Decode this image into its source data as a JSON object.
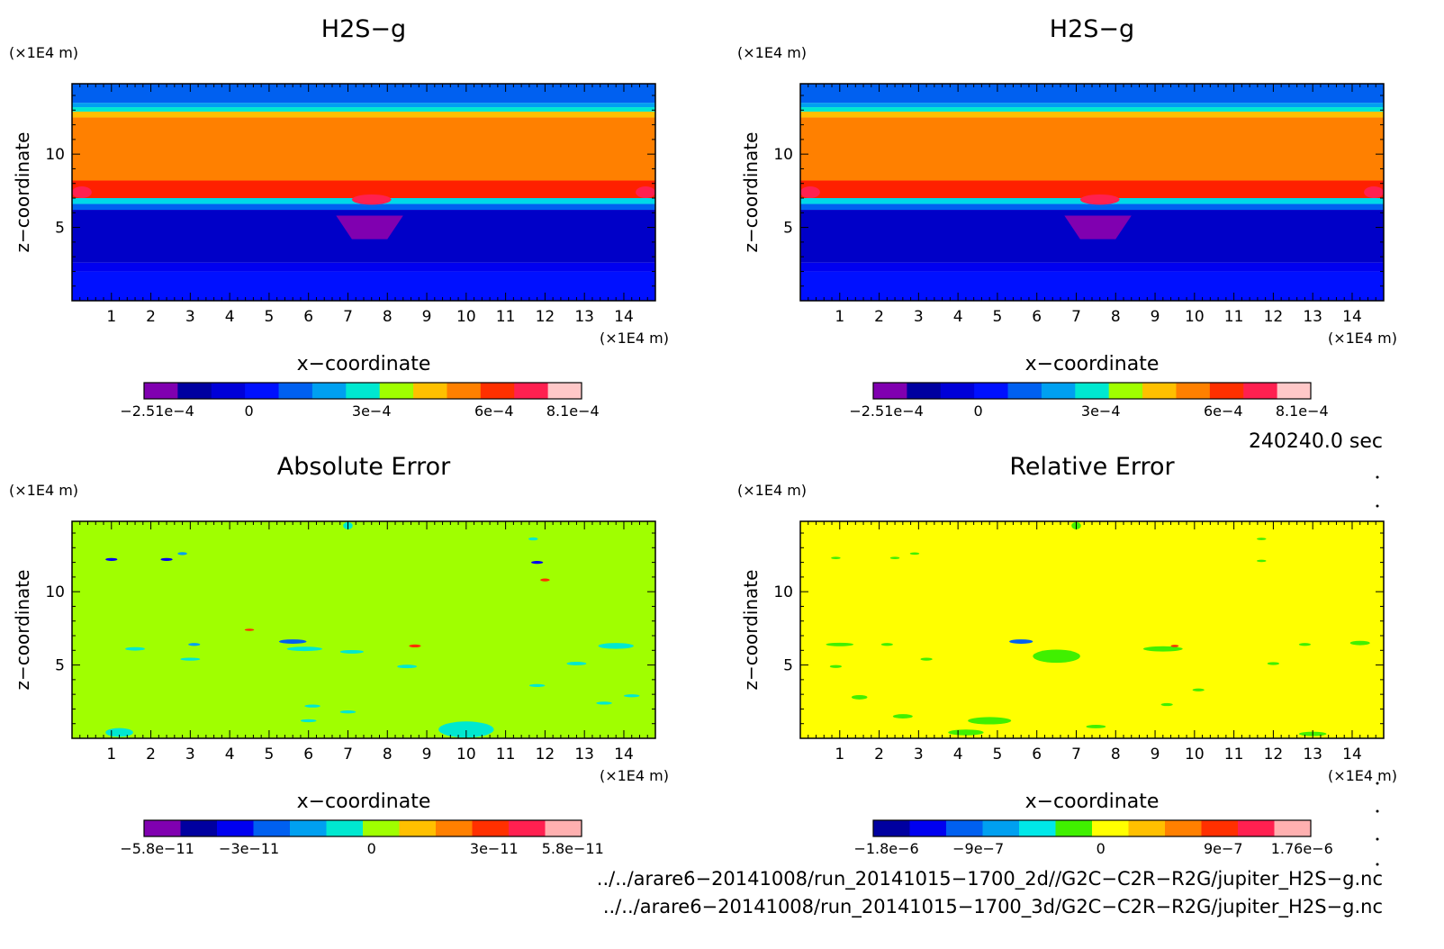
{
  "chart_data": [
    {
      "type": "heatmap",
      "title": "H2S−g",
      "xlabel": "x−coordinate",
      "ylabel": "z−coordinate",
      "x_unit": "(×1E4 m)",
      "y_unit": "(×1E4 m)",
      "xlim": [
        0,
        14.8
      ],
      "ylim": [
        0,
        14.8
      ],
      "xticks": [
        1,
        2,
        3,
        4,
        5,
        6,
        7,
        8,
        9,
        10,
        11,
        12,
        13,
        14
      ],
      "yticks": [
        5,
        10
      ],
      "colorbar": {
        "colors": [
          "#8000b0",
          "#0000a0",
          "#0000d8",
          "#0010ff",
          "#0060f0",
          "#00a0f0",
          "#00e8d0",
          "#a0ff00",
          "#ffc000",
          "#ff8000",
          "#ff3000",
          "#ff2050",
          "#ffc8c8"
        ],
        "tick_labels": [
          "−2.51e−4",
          "0",
          "3e−4",
          "6e−4",
          "8.1e−4"
        ]
      },
      "bands": [
        {
          "z_from": 0,
          "z_to": 2.0,
          "color": "#0010ff"
        },
        {
          "z_from": 2.0,
          "z_to": 2.6,
          "color": "#0000f0"
        },
        {
          "z_from": 2.6,
          "z_to": 6.2,
          "color": "#0000c8"
        },
        {
          "z_from": 6.2,
          "z_to": 6.6,
          "color": "#0060f0"
        },
        {
          "z_from": 6.6,
          "z_to": 7.0,
          "color": "#00d8e8"
        },
        {
          "z_from": 7.0,
          "z_to": 8.2,
          "color": "#ff2000"
        },
        {
          "z_from": 8.2,
          "z_to": 12.5,
          "color": "#ff8000"
        },
        {
          "z_from": 12.5,
          "z_to": 12.9,
          "color": "#ffc000"
        },
        {
          "z_from": 12.9,
          "z_to": 13.2,
          "color": "#00e8d0"
        },
        {
          "z_from": 13.2,
          "z_to": 13.5,
          "color": "#00a0f0"
        },
        {
          "z_from": 13.5,
          "z_to": 14.8,
          "color": "#0060f0"
        }
      ],
      "features": [
        {
          "shape": "trapezoid",
          "x": [
            6.7,
            8.4,
            8.0,
            7.1
          ],
          "z": [
            5.8,
            5.8,
            4.2,
            4.2
          ],
          "color": "#8000b0"
        },
        {
          "shape": "ellipse",
          "cx": 7.6,
          "cz": 6.9,
          "rx": 0.5,
          "rz": 0.35,
          "color": "#ff2050"
        },
        {
          "shape": "ellipse",
          "cx": 0.25,
          "cz": 7.4,
          "rx": 0.25,
          "rz": 0.4,
          "color": "#ff2050"
        },
        {
          "shape": "ellipse",
          "cx": 14.55,
          "cz": 7.4,
          "rx": 0.25,
          "rz": 0.4,
          "color": "#ff2050"
        }
      ]
    },
    {
      "type": "heatmap",
      "title": "H2S−g",
      "xlabel": "x−coordinate",
      "ylabel": "z−coordinate",
      "x_unit": "(×1E4 m)",
      "y_unit": "(×1E4 m)",
      "xlim": [
        0,
        14.8
      ],
      "ylim": [
        0,
        14.8
      ],
      "xticks": [
        1,
        2,
        3,
        4,
        5,
        6,
        7,
        8,
        9,
        10,
        11,
        12,
        13,
        14
      ],
      "yticks": [
        5,
        10
      ],
      "colorbar": {
        "colors": [
          "#8000b0",
          "#0000a0",
          "#0000d8",
          "#0010ff",
          "#0060f0",
          "#00a0f0",
          "#00e8d0",
          "#a0ff00",
          "#ffc000",
          "#ff8000",
          "#ff3000",
          "#ff2050",
          "#ffc8c8"
        ],
        "tick_labels": [
          "−2.51e−4",
          "0",
          "3e−4",
          "6e−4",
          "8.1e−4"
        ]
      },
      "bands": [
        {
          "z_from": 0,
          "z_to": 2.0,
          "color": "#0010ff"
        },
        {
          "z_from": 2.0,
          "z_to": 2.6,
          "color": "#0000f0"
        },
        {
          "z_from": 2.6,
          "z_to": 6.2,
          "color": "#0000c8"
        },
        {
          "z_from": 6.2,
          "z_to": 6.6,
          "color": "#0060f0"
        },
        {
          "z_from": 6.6,
          "z_to": 7.0,
          "color": "#00d8e8"
        },
        {
          "z_from": 7.0,
          "z_to": 8.2,
          "color": "#ff2000"
        },
        {
          "z_from": 8.2,
          "z_to": 12.5,
          "color": "#ff8000"
        },
        {
          "z_from": 12.5,
          "z_to": 12.9,
          "color": "#ffc000"
        },
        {
          "z_from": 12.9,
          "z_to": 13.2,
          "color": "#00e8d0"
        },
        {
          "z_from": 13.2,
          "z_to": 13.5,
          "color": "#00a0f0"
        },
        {
          "z_from": 13.5,
          "z_to": 14.8,
          "color": "#0060f0"
        }
      ],
      "features": [
        {
          "shape": "trapezoid",
          "x": [
            6.7,
            8.4,
            8.0,
            7.1
          ],
          "z": [
            5.8,
            5.8,
            4.2,
            4.2
          ],
          "color": "#8000b0"
        },
        {
          "shape": "ellipse",
          "cx": 7.6,
          "cz": 6.9,
          "rx": 0.5,
          "rz": 0.35,
          "color": "#ff2050"
        },
        {
          "shape": "ellipse",
          "cx": 0.25,
          "cz": 7.4,
          "rx": 0.25,
          "rz": 0.4,
          "color": "#ff2050"
        },
        {
          "shape": "ellipse",
          "cx": 14.55,
          "cz": 7.4,
          "rx": 0.25,
          "rz": 0.4,
          "color": "#ff2050"
        }
      ]
    },
    {
      "type": "heatmap",
      "title": "Absolute Error",
      "xlabel": "x−coordinate",
      "ylabel": "z−coordinate",
      "x_unit": "(×1E4 m)",
      "y_unit": "(×1E4 m)",
      "xlim": [
        0,
        14.8
      ],
      "ylim": [
        0,
        14.8
      ],
      "xticks": [
        1,
        2,
        3,
        4,
        5,
        6,
        7,
        8,
        9,
        10,
        11,
        12,
        13,
        14
      ],
      "yticks": [
        5,
        10
      ],
      "colorbar": {
        "colors": [
          "#8000b0",
          "#0000a0",
          "#0000f0",
          "#0060f0",
          "#00a0f0",
          "#00e8d0",
          "#a0ff00",
          "#ffc000",
          "#ff8000",
          "#ff3000",
          "#ff2050",
          "#ffb0b0"
        ],
        "tick_labels": [
          "−5.8e−11",
          "−3e−11",
          "0",
          "3e−11",
          "5.8e−11"
        ]
      },
      "bands": [
        {
          "z_from": 0,
          "z_to": 14.8,
          "color": "#a0ff00"
        }
      ],
      "features": [
        {
          "shape": "ellipse",
          "cx": 1.0,
          "cz": 12.2,
          "rx": 0.15,
          "rz": 0.1,
          "color": "#0000f0"
        },
        {
          "shape": "ellipse",
          "cx": 2.4,
          "cz": 12.2,
          "rx": 0.15,
          "rz": 0.1,
          "color": "#0000f0"
        },
        {
          "shape": "ellipse",
          "cx": 11.8,
          "cz": 12.0,
          "rx": 0.15,
          "rz": 0.1,
          "color": "#0000f0"
        },
        {
          "shape": "ellipse",
          "cx": 2.8,
          "cz": 12.6,
          "rx": 0.12,
          "rz": 0.1,
          "color": "#00a0f0"
        },
        {
          "shape": "ellipse",
          "cx": 11.7,
          "cz": 13.6,
          "rx": 0.12,
          "rz": 0.1,
          "color": "#00e8d0"
        },
        {
          "shape": "ellipse",
          "cx": 7.0,
          "cz": 14.5,
          "rx": 0.12,
          "rz": 0.25,
          "color": "#00e8d0"
        },
        {
          "shape": "ellipse",
          "cx": 12.0,
          "cz": 10.8,
          "rx": 0.12,
          "rz": 0.1,
          "color": "#ff3000"
        },
        {
          "shape": "ellipse",
          "cx": 4.5,
          "cz": 7.4,
          "rx": 0.12,
          "rz": 0.08,
          "color": "#ff3000"
        },
        {
          "shape": "ellipse",
          "cx": 5.6,
          "cz": 6.6,
          "rx": 0.35,
          "rz": 0.15,
          "color": "#0060f0"
        },
        {
          "shape": "ellipse",
          "cx": 1.6,
          "cz": 6.1,
          "rx": 0.25,
          "rz": 0.12,
          "color": "#00e8d0"
        },
        {
          "shape": "ellipse",
          "cx": 3.1,
          "cz": 6.4,
          "rx": 0.15,
          "rz": 0.1,
          "color": "#00a0f0"
        },
        {
          "shape": "ellipse",
          "cx": 5.9,
          "cz": 6.1,
          "rx": 0.45,
          "rz": 0.15,
          "color": "#00e8d0"
        },
        {
          "shape": "ellipse",
          "cx": 7.1,
          "cz": 5.9,
          "rx": 0.3,
          "rz": 0.12,
          "color": "#00e8d0"
        },
        {
          "shape": "ellipse",
          "cx": 8.7,
          "cz": 6.3,
          "rx": 0.15,
          "rz": 0.1,
          "color": "#ff3000"
        },
        {
          "shape": "ellipse",
          "cx": 13.8,
          "cz": 6.3,
          "rx": 0.45,
          "rz": 0.2,
          "color": "#00e8d0"
        },
        {
          "shape": "ellipse",
          "cx": 3.0,
          "cz": 5.4,
          "rx": 0.25,
          "rz": 0.1,
          "color": "#00e8d0"
        },
        {
          "shape": "ellipse",
          "cx": 8.5,
          "cz": 4.9,
          "rx": 0.25,
          "rz": 0.12,
          "color": "#00e8d0"
        },
        {
          "shape": "ellipse",
          "cx": 12.8,
          "cz": 5.1,
          "rx": 0.25,
          "rz": 0.12,
          "color": "#00e8d0"
        },
        {
          "shape": "ellipse",
          "cx": 11.8,
          "cz": 3.6,
          "rx": 0.2,
          "rz": 0.1,
          "color": "#00e8d0"
        },
        {
          "shape": "ellipse",
          "cx": 14.2,
          "cz": 2.9,
          "rx": 0.2,
          "rz": 0.1,
          "color": "#00e8d0"
        },
        {
          "shape": "ellipse",
          "cx": 13.5,
          "cz": 2.4,
          "rx": 0.2,
          "rz": 0.1,
          "color": "#00e8d0"
        },
        {
          "shape": "ellipse",
          "cx": 6.1,
          "cz": 2.2,
          "rx": 0.2,
          "rz": 0.1,
          "color": "#00e8d0"
        },
        {
          "shape": "ellipse",
          "cx": 7.0,
          "cz": 1.8,
          "rx": 0.2,
          "rz": 0.1,
          "color": "#00e8d0"
        },
        {
          "shape": "ellipse",
          "cx": 10.0,
          "cz": 0.6,
          "rx": 0.7,
          "rz": 0.55,
          "color": "#00e8d0"
        },
        {
          "shape": "ellipse",
          "cx": 1.2,
          "cz": 0.4,
          "rx": 0.35,
          "rz": 0.3,
          "color": "#00e8d0"
        },
        {
          "shape": "ellipse",
          "cx": 6.0,
          "cz": 1.2,
          "rx": 0.2,
          "rz": 0.1,
          "color": "#00e8d0"
        }
      ]
    },
    {
      "type": "heatmap",
      "title": "Relative Error",
      "xlabel": "x−coordinate",
      "ylabel": "z−coordinate",
      "x_unit": "(×1E4 m)",
      "y_unit": "(×1E4 m)",
      "xlim": [
        0,
        14.8
      ],
      "ylim": [
        0,
        14.8
      ],
      "xticks": [
        1,
        2,
        3,
        4,
        5,
        6,
        7,
        8,
        9,
        10,
        11,
        12,
        13,
        14
      ],
      "yticks": [
        5,
        10
      ],
      "colorbar": {
        "colors": [
          "#0000a0",
          "#0000f0",
          "#0060f0",
          "#00a0f0",
          "#00e8e8",
          "#40f000",
          "#ffff00",
          "#ffc000",
          "#ff8000",
          "#ff3000",
          "#ff2050",
          "#ffb0b0"
        ],
        "tick_labels": [
          "−1.8e−6",
          "−9e−7",
          "0",
          "9e−7",
          "1.76e−6"
        ]
      },
      "bands": [
        {
          "z_from": 0,
          "z_to": 14.8,
          "color": "#ffff00"
        }
      ],
      "features": [
        {
          "shape": "ellipse",
          "cx": 7.0,
          "cz": 14.5,
          "rx": 0.12,
          "rz": 0.25,
          "color": "#40f000"
        },
        {
          "shape": "ellipse",
          "cx": 0.9,
          "cz": 12.3,
          "rx": 0.12,
          "rz": 0.08,
          "color": "#40f000"
        },
        {
          "shape": "ellipse",
          "cx": 2.4,
          "cz": 12.3,
          "rx": 0.12,
          "rz": 0.08,
          "color": "#40f000"
        },
        {
          "shape": "ellipse",
          "cx": 2.9,
          "cz": 12.6,
          "rx": 0.12,
          "rz": 0.08,
          "color": "#40f000"
        },
        {
          "shape": "ellipse",
          "cx": 11.7,
          "cz": 13.6,
          "rx": 0.12,
          "rz": 0.08,
          "color": "#40f000"
        },
        {
          "shape": "ellipse",
          "cx": 11.7,
          "cz": 12.1,
          "rx": 0.12,
          "rz": 0.08,
          "color": "#40f000"
        },
        {
          "shape": "ellipse",
          "cx": 1.0,
          "cz": 6.4,
          "rx": 0.35,
          "rz": 0.12,
          "color": "#40f000"
        },
        {
          "shape": "ellipse",
          "cx": 2.2,
          "cz": 6.4,
          "rx": 0.15,
          "rz": 0.1,
          "color": "#40f000"
        },
        {
          "shape": "ellipse",
          "cx": 5.6,
          "cz": 6.6,
          "rx": 0.3,
          "rz": 0.15,
          "color": "#0060f0"
        },
        {
          "shape": "ellipse",
          "cx": 6.5,
          "cz": 5.6,
          "rx": 0.6,
          "rz": 0.45,
          "color": "#40f000"
        },
        {
          "shape": "ellipse",
          "cx": 9.2,
          "cz": 6.1,
          "rx": 0.5,
          "rz": 0.18,
          "color": "#40f000"
        },
        {
          "shape": "ellipse",
          "cx": 9.5,
          "cz": 6.3,
          "rx": 0.1,
          "rz": 0.08,
          "color": "#ff3000"
        },
        {
          "shape": "ellipse",
          "cx": 14.2,
          "cz": 6.5,
          "rx": 0.25,
          "rz": 0.15,
          "color": "#40f000"
        },
        {
          "shape": "ellipse",
          "cx": 12.8,
          "cz": 6.4,
          "rx": 0.15,
          "rz": 0.1,
          "color": "#40f000"
        },
        {
          "shape": "ellipse",
          "cx": 3.2,
          "cz": 5.4,
          "rx": 0.15,
          "rz": 0.1,
          "color": "#40f000"
        },
        {
          "shape": "ellipse",
          "cx": 0.9,
          "cz": 4.9,
          "rx": 0.15,
          "rz": 0.1,
          "color": "#40f000"
        },
        {
          "shape": "ellipse",
          "cx": 12.0,
          "cz": 5.1,
          "rx": 0.15,
          "rz": 0.1,
          "color": "#40f000"
        },
        {
          "shape": "ellipse",
          "cx": 1.5,
          "cz": 2.8,
          "rx": 0.2,
          "rz": 0.15,
          "color": "#40f000"
        },
        {
          "shape": "ellipse",
          "cx": 2.6,
          "cz": 1.5,
          "rx": 0.25,
          "rz": 0.15,
          "color": "#40f000"
        },
        {
          "shape": "ellipse",
          "cx": 4.8,
          "cz": 1.2,
          "rx": 0.55,
          "rz": 0.25,
          "color": "#40f000"
        },
        {
          "shape": "ellipse",
          "cx": 4.2,
          "cz": 0.4,
          "rx": 0.45,
          "rz": 0.2,
          "color": "#40f000"
        },
        {
          "shape": "ellipse",
          "cx": 7.5,
          "cz": 0.8,
          "rx": 0.25,
          "rz": 0.12,
          "color": "#40f000"
        },
        {
          "shape": "ellipse",
          "cx": 13.0,
          "cz": 0.3,
          "rx": 0.35,
          "rz": 0.15,
          "color": "#40f000"
        },
        {
          "shape": "ellipse",
          "cx": 9.3,
          "cz": 2.3,
          "rx": 0.15,
          "rz": 0.1,
          "color": "#40f000"
        },
        {
          "shape": "ellipse",
          "cx": 10.1,
          "cz": 3.3,
          "rx": 0.15,
          "rz": 0.1,
          "color": "#40f000"
        }
      ]
    }
  ],
  "time_label": "240240.0 sec",
  "file_paths": [
    "../../arare6−20141008/run_20141015−1700_2d//G2C−C2R−R2G/jupiter_H2S−g.nc",
    "../../arare6−20141008/run_20141015−1700_3d/G2C−C2R−R2G/jupiter_H2S−g.nc"
  ]
}
